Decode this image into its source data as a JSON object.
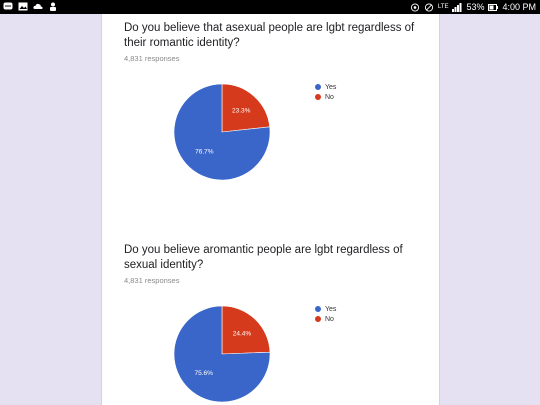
{
  "status_bar": {
    "battery_text": "53%",
    "time": "4:00 PM",
    "network": "LTE"
  },
  "colors": {
    "yes": "#3a66c9",
    "no": "#d63a1c"
  },
  "charts": [
    {
      "question": "Do you believe that asexual people are lgbt regardless of their romantic identity?",
      "responses": "4,831 responses",
      "chart_data": {
        "type": "pie",
        "categories": [
          "Yes",
          "No"
        ],
        "values": [
          76.7,
          23.3
        ],
        "labels": [
          "76.7%",
          "23.3%"
        ],
        "legend": "right"
      }
    },
    {
      "question": "Do you believe aromantic people are lgbt regardless of sexual identity?",
      "responses": "4,831 responses",
      "chart_data": {
        "type": "pie",
        "categories": [
          "Yes",
          "No"
        ],
        "values": [
          75.6,
          24.4
        ],
        "labels": [
          "75.6%",
          "24.4%"
        ],
        "legend": "right"
      }
    }
  ]
}
